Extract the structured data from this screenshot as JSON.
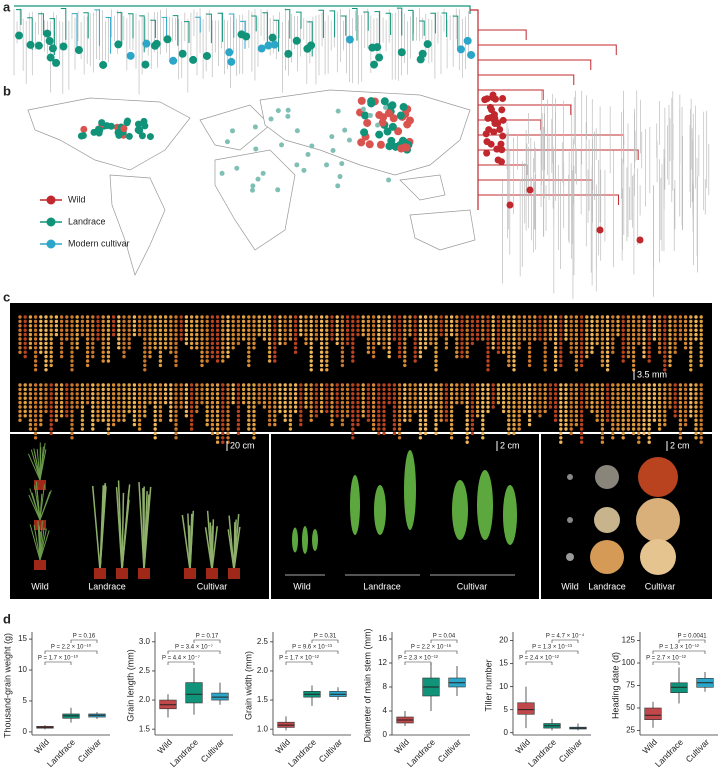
{
  "panels": [
    "a",
    "b",
    "c",
    "d"
  ],
  "legend": [
    {
      "name": "Wild",
      "color": "#c0282d"
    },
    {
      "name": "Landrace",
      "color": "#11937a"
    },
    {
      "name": "Modern cultivar",
      "color": "#2ba6c9"
    }
  ],
  "scale_bars": [
    "3.5 mm",
    "20 cm",
    "2 cm",
    "2 cm"
  ],
  "photo_labels": [
    [
      "Wild",
      "Landrace",
      "Cultivar"
    ],
    [
      "Wild",
      "Landrace",
      "Cultivar"
    ],
    [
      "Wild",
      "Landrace",
      "Cultivar"
    ]
  ],
  "chart_data": [
    {
      "type": "box",
      "ylabel": "Thousand-grain weight (g)",
      "categories": [
        "Wild",
        "Landrace",
        "Cultivar"
      ],
      "colors": [
        "#c0474a",
        "#11937a",
        "#2ba6c9"
      ],
      "boxes": [
        {
          "low": 0.4,
          "q1": 0.6,
          "median": 0.75,
          "q3": 0.9,
          "high": 1.1
        },
        {
          "low": 1.5,
          "q1": 2.2,
          "median": 2.6,
          "q3": 2.9,
          "high": 3.9
        },
        {
          "low": 2.1,
          "q1": 2.4,
          "median": 2.7,
          "q3": 2.9,
          "high": 3.2
        }
      ],
      "ylim": [
        -0.5,
        15.5
      ],
      "yticks": [
        0,
        5,
        10,
        15
      ],
      "p_values": [
        "P = 1.7 × 10⁻¹⁰",
        "P = 2.2 × 10⁻¹⁰",
        "P = 0.16"
      ]
    },
    {
      "type": "box",
      "ylabel": "Grain length (mm)",
      "categories": [
        "Wild",
        "Landrace",
        "Cultivar"
      ],
      "colors": [
        "#c0474a",
        "#11937a",
        "#2ba6c9"
      ],
      "boxes": [
        {
          "low": 1.7,
          "q1": 1.85,
          "median": 1.92,
          "q3": 2.0,
          "high": 2.1
        },
        {
          "low": 1.75,
          "q1": 1.95,
          "median": 2.1,
          "q3": 2.3,
          "high": 2.55
        },
        {
          "low": 1.92,
          "q1": 2.0,
          "median": 2.05,
          "q3": 2.12,
          "high": 2.3
        }
      ],
      "ylim": [
        1.4,
        3.1
      ],
      "yticks": [
        1.5,
        {
          "value": 2,
          "label": "2.0"
        },
        2.5,
        {
          "value": 3,
          "label": "3.0"
        }
      ],
      "p_values": [
        "P = 4.4 × 10⁻⁷",
        "P = 3.4 × 10⁻⁷",
        "P = 0.17"
      ]
    },
    {
      "type": "box",
      "ylabel": "Grain width (mm)",
      "categories": [
        "Wild",
        "Landrace",
        "Cultivar"
      ],
      "colors": [
        "#c0474a",
        "#11937a",
        "#2ba6c9"
      ],
      "boxes": [
        {
          "low": 0.98,
          "q1": 1.03,
          "median": 1.07,
          "q3": 1.12,
          "high": 1.22
        },
        {
          "low": 1.4,
          "q1": 1.55,
          "median": 1.6,
          "q3": 1.65,
          "high": 1.75
        },
        {
          "low": 1.5,
          "q1": 1.56,
          "median": 1.6,
          "q3": 1.65,
          "high": 1.72
        }
      ],
      "ylim": [
        0.9,
        2.6
      ],
      "yticks": [
        {
          "value": 1,
          "label": "1.0"
        },
        1.5,
        {
          "value": 2,
          "label": "2.0"
        },
        2.5
      ],
      "p_values": [
        "P = 1.7 × 10⁻¹²",
        "P = 9.6 × 10⁻¹³",
        "P = 0.31"
      ]
    },
    {
      "type": "box",
      "ylabel": "Diameter of main stem (mm)",
      "categories": [
        "Wild",
        "Landrace",
        "Cultivar"
      ],
      "colors": [
        "#c0474a",
        "#11937a",
        "#2ba6c9"
      ],
      "boxes": [
        {
          "low": 1.5,
          "q1": 2,
          "median": 2.5,
          "q3": 3,
          "high": 4
        },
        {
          "low": 4,
          "q1": 6.5,
          "median": 8,
          "q3": 9.5,
          "high": 12
        },
        {
          "low": 6.5,
          "q1": 8,
          "median": 8.7,
          "q3": 9.5,
          "high": 11.5
        }
      ],
      "ylim": [
        0,
        16.5
      ],
      "yticks": [
        0,
        4,
        8,
        12,
        16
      ],
      "p_values": [
        "P = 2.3 × 10⁻¹²",
        "P = 2.2 × 10⁻¹⁶",
        "P = 0.04"
      ]
    },
    {
      "type": "box",
      "ylabel": "Tiller number",
      "categories": [
        "Wild",
        "Landrace",
        "Cultivar"
      ],
      "colors": [
        "#c0474a",
        "#11937a",
        "#2ba6c9"
      ],
      "boxes": [
        {
          "low": 1,
          "q1": 4,
          "median": 5,
          "q3": 6.5,
          "high": 10
        },
        {
          "low": 0.5,
          "q1": 1,
          "median": 1.5,
          "q3": 2,
          "high": 3
        },
        {
          "low": 0.5,
          "q1": 0.8,
          "median": 1,
          "q3": 1.2,
          "high": 2
        }
      ],
      "ylim": [
        -0.5,
        21
      ],
      "yticks": [
        0,
        5,
        10,
        15,
        20
      ],
      "p_values": [
        "P = 2.4 × 10⁻¹²",
        "P = 1.3 × 10⁻¹³",
        "P = 4.7 × 10⁻⁴"
      ]
    },
    {
      "type": "box",
      "ylabel": "Heading date (d)",
      "categories": [
        "Wild",
        "Landrace",
        "Cultivar"
      ],
      "colors": [
        "#c0474a",
        "#11937a",
        "#2ba6c9"
      ],
      "boxes": [
        {
          "low": 28,
          "q1": 37,
          "median": 42,
          "q3": 50,
          "high": 57
        },
        {
          "low": 55,
          "q1": 67,
          "median": 73,
          "q3": 78,
          "high": 95
        },
        {
          "low": 68,
          "q1": 73,
          "median": 78,
          "q3": 83,
          "high": 90
        }
      ],
      "ylim": [
        20,
        130
      ],
      "yticks": [
        25,
        50,
        75,
        100,
        125
      ],
      "p_values": [
        "P = 2.7 × 10⁻¹²",
        "P = 1.3 × 10⁻¹²",
        "P = 0.0041"
      ]
    }
  ]
}
